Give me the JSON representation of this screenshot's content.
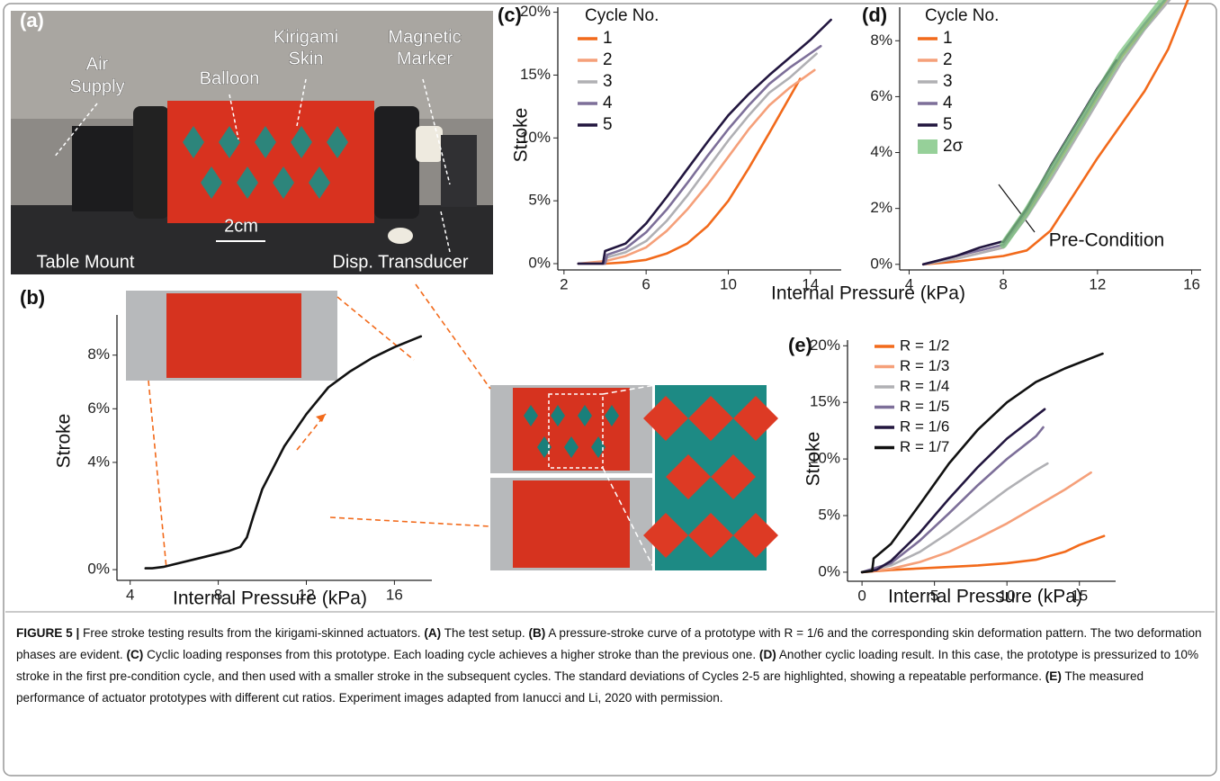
{
  "photo_a": {
    "panel_label": "(a)",
    "labels": [
      "Air",
      "Supply",
      "Balloon",
      "Kirigami",
      "Skin",
      "Magnetic",
      "Marker",
      "2cm",
      "Table Mount",
      "Disp. Transducer"
    ]
  },
  "chart_data": [
    {
      "type": "line",
      "panel_label": "(b)",
      "xlabel": "Internal Pressure (kPa)",
      "ylabel": "Stroke",
      "color": "#111111",
      "x": [
        4.7,
        5,
        5.5,
        6,
        7,
        8,
        8.5,
        9,
        9.3,
        9.6,
        10,
        10.5,
        11,
        12,
        12.5,
        13,
        14,
        15,
        16,
        17.2
      ],
      "values": [
        0.05,
        0.05,
        0.1,
        0.2,
        0.4,
        0.6,
        0.7,
        0.85,
        1.2,
        2.0,
        3.0,
        3.8,
        4.6,
        5.8,
        6.3,
        6.8,
        7.4,
        7.9,
        8.3,
        8.7
      ],
      "xlim": [
        3.4,
        17.7
      ],
      "xticks": [
        4,
        8,
        12,
        16
      ],
      "ylim": [
        -0.4,
        9.5
      ],
      "yticks": [
        {
          "value": 0,
          "label": "0%"
        },
        {
          "value": 4,
          "label": "4%"
        },
        {
          "value": 6,
          "label": "6%"
        },
        {
          "value": 8,
          "label": "8%"
        }
      ]
    },
    {
      "type": "line",
      "panel_label": "(c)",
      "xlabel": "Internal Pressure (kPa)",
      "ylabel": "Stroke",
      "legend_title": "Cycle No.",
      "legend": "upper left",
      "xlim": [
        1.7,
        15.5
      ],
      "xticks": [
        2,
        6,
        10,
        14
      ],
      "ylim": [
        -0.5,
        20.4
      ],
      "yticks": [
        {
          "value": 0,
          "label": "0%"
        },
        {
          "value": 5,
          "label": "5%"
        },
        {
          "value": 10,
          "label": "10%"
        },
        {
          "value": 15,
          "label": "15%"
        },
        {
          "value": 20,
          "label": "20%"
        }
      ],
      "series": [
        {
          "name": "1",
          "color": "#f26a1b",
          "x": [
            2.7,
            4,
            5,
            6,
            7,
            8,
            9,
            10,
            11,
            12,
            13.5
          ],
          "values": [
            0,
            0,
            0.1,
            0.3,
            0.8,
            1.6,
            3,
            5,
            7.6,
            10.4,
            14.7
          ]
        },
        {
          "name": "2",
          "color": "#f5a07a",
          "x": [
            2.7,
            4,
            5,
            6,
            7,
            8,
            9,
            10,
            11,
            12,
            13,
            14.2
          ],
          "values": [
            0,
            0.2,
            0.6,
            1.3,
            2.6,
            4.3,
            6.3,
            8.5,
            10.7,
            12.6,
            14,
            15.4
          ]
        },
        {
          "name": "3",
          "color": "#b0b0b4",
          "x": [
            2.7,
            4,
            4.1,
            5,
            6,
            7,
            8,
            9,
            10,
            11,
            12,
            13,
            14.3
          ],
          "values": [
            0,
            0,
            0.5,
            0.9,
            1.8,
            3.4,
            5.4,
            7.6,
            9.8,
            11.8,
            13.6,
            14.8,
            16.7
          ]
        },
        {
          "name": "4",
          "color": "#7d6f99",
          "x": [
            2.7,
            4,
            4.1,
            5,
            6,
            7,
            8,
            9,
            10,
            11,
            12,
            13,
            14.5
          ],
          "values": [
            0,
            0,
            0.7,
            1.2,
            2.5,
            4.3,
            6.4,
            8.6,
            10.7,
            12.6,
            14.3,
            15.6,
            17.3
          ]
        },
        {
          "name": "5",
          "color": "#22163f",
          "x": [
            2.7,
            3.9,
            4,
            5,
            6,
            7,
            8,
            9,
            10,
            11,
            12,
            13,
            14,
            15
          ],
          "values": [
            0,
            0,
            1.0,
            1.6,
            3.2,
            5.3,
            7.5,
            9.7,
            11.8,
            13.5,
            15,
            16.4,
            17.8,
            19.4
          ]
        }
      ]
    },
    {
      "type": "line",
      "panel_label": "(d)",
      "legend_title": "Cycle No.",
      "legend": "upper left",
      "annotation": "Pre-Condition",
      "xlim": [
        3.6,
        16.4
      ],
      "xticks": [
        4,
        8,
        12,
        16
      ],
      "ylim": [
        -0.2,
        9.2
      ],
      "yticks": [
        {
          "value": 0,
          "label": "0%"
        },
        {
          "value": 2,
          "label": "2%"
        },
        {
          "value": 4,
          "label": "4%"
        },
        {
          "value": 6,
          "label": "6%"
        },
        {
          "value": 8,
          "label": "8%"
        }
      ],
      "series": [
        {
          "name": "1",
          "color": "#f26a1b",
          "x": [
            4.6,
            6,
            7,
            8,
            9,
            10,
            11,
            12,
            13,
            14,
            15,
            16
          ],
          "values": [
            0,
            0.1,
            0.2,
            0.3,
            0.5,
            1.2,
            2.5,
            3.8,
            5,
            6.2,
            7.7,
            9.8
          ]
        },
        {
          "name": "2",
          "color": "#f5a07a",
          "x": [
            4.6,
            6,
            7,
            8,
            9,
            10,
            11,
            12,
            13,
            14,
            15.1
          ],
          "values": [
            0,
            0.2,
            0.4,
            0.6,
            1.8,
            3.2,
            4.6,
            6,
            7.4,
            8.5,
            9.6
          ]
        },
        {
          "name": "3",
          "color": "#b0b0b4",
          "x": [
            4.6,
            6,
            7,
            8,
            9,
            10,
            11,
            12,
            13,
            14,
            15.2
          ],
          "values": [
            0,
            0.2,
            0.4,
            0.6,
            1.7,
            3.0,
            4.4,
            5.8,
            7.2,
            8.4,
            9.6
          ]
        },
        {
          "name": "4",
          "color": "#7d6f99",
          "x": [
            4.6,
            6,
            7,
            8,
            9,
            10,
            11,
            12,
            13,
            14,
            15.1
          ],
          "values": [
            0,
            0.3,
            0.5,
            0.7,
            1.9,
            3.3,
            4.7,
            6.1,
            7.5,
            8.6,
            9.7
          ]
        },
        {
          "name": "5",
          "color": "#22163f",
          "x": [
            4.6,
            6,
            7,
            7.9,
            8,
            9,
            10,
            11,
            12,
            12.8
          ],
          "values": [
            0,
            0.3,
            0.6,
            0.8,
            0.8,
            2.0,
            3.5,
            4.9,
            6.3,
            7.3
          ]
        },
        {
          "name": "2σ",
          "color": "#7cc47f",
          "style": "band",
          "x": [
            8,
            9,
            10,
            11,
            12,
            13,
            14,
            15
          ],
          "values": [
            0.7,
            1.9,
            3.3,
            4.7,
            6.1,
            7.5,
            8.6,
            9.7
          ]
        }
      ]
    },
    {
      "type": "line",
      "panel_label": "(e)",
      "xlabel": "Internal Pressure (kPa)",
      "ylabel": "Stroke",
      "legend": "upper left",
      "xlim": [
        -1,
        17.5
      ],
      "xticks": [
        0,
        5,
        10,
        15
      ],
      "ylim": [
        -0.8,
        20.5
      ],
      "yticks": [
        {
          "value": 0,
          "label": "0%"
        },
        {
          "value": 5,
          "label": "5%"
        },
        {
          "value": 10,
          "label": "10%"
        },
        {
          "value": 15,
          "label": "15%"
        },
        {
          "value": 20,
          "label": "20%"
        }
      ],
      "series": [
        {
          "name": "R = 1/2",
          "color": "#f26a1b",
          "x": [
            0,
            2,
            5,
            8,
            10,
            12,
            14,
            15,
            16.7
          ],
          "values": [
            0,
            0.2,
            0.4,
            0.6,
            0.8,
            1.1,
            1.8,
            2.4,
            3.2
          ]
        },
        {
          "name": "R = 1/3",
          "color": "#f5a07a",
          "x": [
            0,
            2,
            4,
            6,
            8,
            10,
            12,
            14,
            15.8
          ],
          "values": [
            0,
            0.3,
            0.9,
            1.8,
            3,
            4.3,
            5.8,
            7.3,
            8.8
          ]
        },
        {
          "name": "R = 1/4",
          "color": "#b0b0b4",
          "x": [
            0,
            2,
            4,
            6,
            8,
            10,
            12,
            12.8
          ],
          "values": [
            0,
            0.6,
            1.8,
            3.5,
            5.4,
            7.3,
            9,
            9.6
          ]
        },
        {
          "name": "R = 1/5",
          "color": "#7d6f99",
          "x": [
            0,
            2,
            4,
            6,
            8,
            10,
            12,
            12.5
          ],
          "values": [
            0,
            0.8,
            2.8,
            5.2,
            7.7,
            10,
            12,
            12.8
          ]
        },
        {
          "name": "R = 1/6",
          "color": "#22163f",
          "x": [
            0,
            1,
            2,
            4,
            6,
            8,
            10,
            12,
            12.6
          ],
          "values": [
            0,
            0.2,
            1,
            3.5,
            6.5,
            9.3,
            11.8,
            13.8,
            14.4
          ]
        },
        {
          "name": "R = 1/7",
          "color": "#111111",
          "x": [
            0,
            0.7,
            0.8,
            2,
            4,
            6,
            8,
            10,
            12,
            14,
            16.6
          ],
          "values": [
            0,
            0.1,
            1.2,
            2.5,
            6,
            9.6,
            12.6,
            15,
            16.8,
            18,
            19.3
          ]
        }
      ]
    }
  ],
  "caption": {
    "label": "FIGURE 5 |",
    "intro": " Free stroke testing results from the kirigami-skinned actuators.",
    "parts": [
      {
        "label": "(A)",
        "text": " The test setup."
      },
      {
        "label": "(B)",
        "text": " A pressure-stroke curve of a prototype with R = 1/6 and the corresponding skin deformation pattern. The two deformation phases are evident."
      },
      {
        "label": "(C)",
        "text": " Cyclic loading responses from this prototype. Each loading cycle achieves a higher stroke than the previous one."
      },
      {
        "label": "(D)",
        "text": " Another cyclic loading result. In this case, the prototype is pressurized to 10% stroke in the first pre-condition cycle, and then used with a smaller stroke in the subsequent cycles. The standard deviations of Cycles 2-5 are highlighted, showing a repeatable performance."
      },
      {
        "label": "(E)",
        "text": " The measured performance of actuator prototypes with different cut ratios. Experiment images adapted from Ianucci and Li, 2020 with permission."
      }
    ]
  }
}
